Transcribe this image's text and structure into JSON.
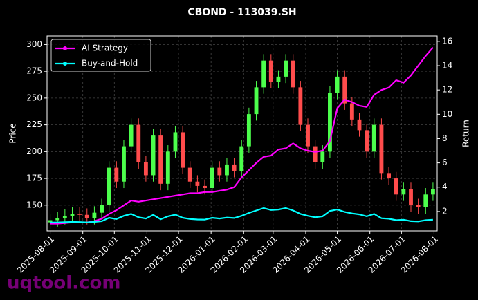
{
  "chart_data": {
    "type": "candlestick",
    "title": "CBOND - 113039.SH",
    "ylabel": "Price",
    "y2label": "Return",
    "watermark": "uqtool.com",
    "x": [
      "2025-08-01",
      "2025-08-08",
      "2025-08-15",
      "2025-08-22",
      "2025-08-29",
      "2025-09-05",
      "2025-09-12",
      "2025-09-19",
      "2025-09-26",
      "2025-10-03",
      "2025-10-10",
      "2025-10-17",
      "2025-10-24",
      "2025-10-31",
      "2025-11-07",
      "2025-11-14",
      "2025-11-21",
      "2025-11-28",
      "2025-12-05",
      "2025-12-12",
      "2025-12-19",
      "2025-12-26",
      "2026-01-02",
      "2026-01-09",
      "2026-01-16",
      "2026-01-23",
      "2026-01-30",
      "2026-02-06",
      "2026-02-13",
      "2026-02-20",
      "2026-02-27",
      "2026-03-06",
      "2026-03-13",
      "2026-03-20",
      "2026-03-27",
      "2026-04-03",
      "2026-04-10",
      "2026-04-17",
      "2026-04-24",
      "2026-05-01",
      "2026-05-08",
      "2026-05-15",
      "2026-05-22",
      "2026-05-29",
      "2026-06-05",
      "2026-06-12",
      "2026-06-19",
      "2026-06-26",
      "2026-07-03",
      "2026-07-10",
      "2026-07-17",
      "2026-07-24",
      "2026-07-31"
    ],
    "open": [
      134,
      136,
      138,
      140,
      142,
      141,
      138,
      143,
      150,
      185,
      172,
      205,
      225,
      190,
      178,
      215,
      170,
      200,
      218,
      185,
      172,
      168,
      166,
      185,
      178,
      188,
      182,
      205,
      235,
      260,
      285,
      265,
      270,
      285,
      260,
      225,
      205,
      190,
      200,
      255,
      270,
      245,
      230,
      220,
      200,
      225,
      180,
      175,
      160,
      165,
      150,
      148,
      160
    ],
    "high": [
      142,
      144,
      146,
      148,
      148,
      147,
      149,
      156,
      191,
      191,
      211,
      231,
      231,
      196,
      221,
      221,
      206,
      224,
      224,
      191,
      178,
      174,
      191,
      191,
      194,
      194,
      211,
      241,
      266,
      291,
      291,
      276,
      291,
      291,
      266,
      231,
      211,
      206,
      261,
      276,
      276,
      251,
      236,
      226,
      231,
      231,
      186,
      181,
      171,
      171,
      156,
      166,
      171
    ],
    "low": [
      128,
      130,
      132,
      134,
      135,
      132,
      132,
      137,
      144,
      166,
      166,
      199,
      184,
      172,
      172,
      164,
      164,
      194,
      179,
      166,
      162,
      160,
      160,
      172,
      172,
      176,
      176,
      199,
      229,
      254,
      259,
      259,
      264,
      254,
      219,
      199,
      184,
      184,
      194,
      249,
      239,
      224,
      214,
      194,
      194,
      174,
      169,
      154,
      154,
      144,
      142,
      142,
      154
    ],
    "close": [
      136,
      138,
      140,
      142,
      141,
      138,
      143,
      150,
      185,
      172,
      205,
      225,
      190,
      178,
      215,
      170,
      200,
      218,
      185,
      172,
      168,
      166,
      185,
      178,
      188,
      182,
      205,
      235,
      260,
      285,
      265,
      270,
      285,
      260,
      225,
      205,
      190,
      200,
      255,
      270,
      245,
      230,
      220,
      200,
      225,
      180,
      175,
      160,
      165,
      150,
      148,
      160,
      165
    ],
    "up_color": "#4cff4c",
    "down_color": "#ff4c4c",
    "series": [
      {
        "name": "AI Strategy",
        "color": "#ff00ff",
        "axis": "y2",
        "values": [
          1.0,
          1.0,
          1.05,
          1.1,
          1.1,
          1.1,
          1.2,
          1.4,
          1.8,
          2.1,
          2.5,
          2.9,
          2.8,
          2.9,
          3.0,
          3.1,
          3.2,
          3.3,
          3.4,
          3.5,
          3.5,
          3.6,
          3.6,
          3.7,
          3.8,
          4.0,
          4.8,
          5.4,
          6.0,
          6.5,
          6.6,
          7.1,
          7.2,
          7.6,
          7.2,
          7.0,
          6.9,
          7.0,
          7.8,
          10.5,
          11.2,
          11.0,
          10.7,
          10.6,
          11.6,
          12.0,
          12.2,
          12.8,
          12.6,
          13.2,
          14.0,
          14.8,
          15.5
        ]
      },
      {
        "name": "Buy-and-Hold",
        "color": "#00ffff",
        "axis": "y2",
        "values": [
          1.09,
          1.1,
          1.12,
          1.14,
          1.13,
          1.1,
          1.14,
          1.2,
          1.48,
          1.38,
          1.64,
          1.8,
          1.52,
          1.42,
          1.72,
          1.36,
          1.6,
          1.74,
          1.48,
          1.38,
          1.34,
          1.33,
          1.48,
          1.42,
          1.5,
          1.46,
          1.64,
          1.88,
          2.08,
          2.28,
          2.12,
          2.16,
          2.28,
          2.08,
          1.8,
          1.64,
          1.52,
          1.6,
          2.04,
          2.16,
          1.96,
          1.84,
          1.76,
          1.6,
          1.8,
          1.44,
          1.4,
          1.28,
          1.32,
          1.2,
          1.18,
          1.28,
          1.32
        ]
      }
    ],
    "xlim": [
      "2025-07-29",
      "2026-08-04"
    ],
    "xticks": [
      "2025-08-01",
      "2025-09-01",
      "2025-10-01",
      "2025-11-01",
      "2025-12-01",
      "2026-01-01",
      "2026-02-01",
      "2026-03-01",
      "2026-04-01",
      "2026-05-01",
      "2026-06-01",
      "2026-07-01",
      "2026-08-01"
    ],
    "ylim": [
      126,
      308
    ],
    "yticks": [
      150,
      175,
      200,
      225,
      250,
      275,
      300
    ],
    "y2lim": [
      0.4,
      16.45
    ],
    "y2ticks": [
      2,
      4,
      6,
      8,
      10,
      12,
      14,
      16
    ],
    "grid": true,
    "legend": "upper left"
  }
}
